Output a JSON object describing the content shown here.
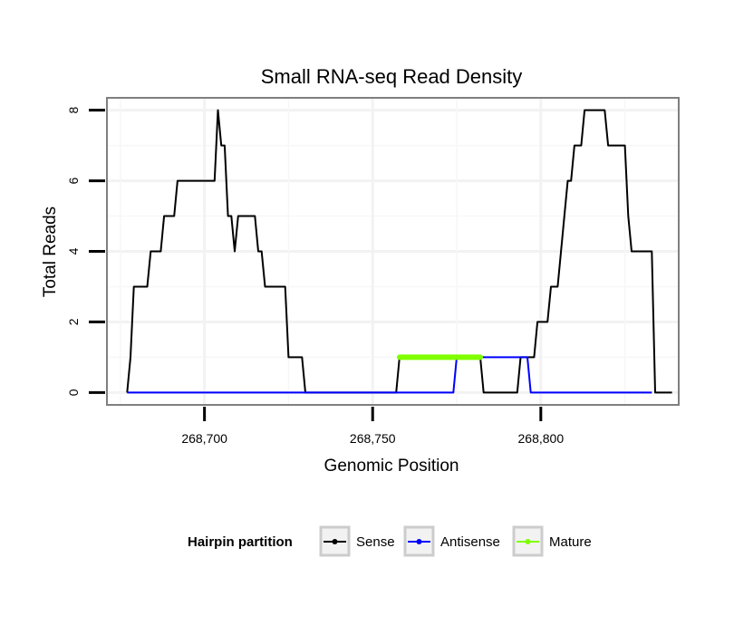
{
  "chart_data": {
    "type": "line",
    "title": "Small RNA-seq Read Density",
    "xlabel": "Genomic Position",
    "ylabel": "Total Reads",
    "xlim": [
      268671,
      268841
    ],
    "ylim": [
      -0.35,
      8.35
    ],
    "x_ticks": [
      268700,
      268750,
      268800
    ],
    "x_tick_labels": [
      "268,700",
      "268,750",
      "268,800"
    ],
    "y_ticks": [
      0,
      2,
      4,
      6,
      8
    ],
    "y_tick_labels": [
      "0",
      "2",
      "4",
      "6",
      "8"
    ],
    "grid": true,
    "legend": {
      "title": "Hairpin partition",
      "position": "bottom",
      "entries": [
        "Sense",
        "Antisense",
        "Mature"
      ]
    },
    "series": [
      {
        "name": "Sense",
        "color": "#000000",
        "x": [
          268677,
          268678,
          268679,
          268680,
          268683,
          268684,
          268687,
          268688,
          268691,
          268692,
          268694,
          268703,
          268704,
          268705,
          268706,
          268707,
          268708,
          268709,
          268710,
          268715,
          268716,
          268717,
          268718,
          268724,
          268725,
          268729,
          268730,
          268757,
          268758,
          268782,
          268783,
          268793,
          268794,
          268797,
          268798,
          268799,
          268802,
          268803,
          268805,
          268806,
          268807,
          268808,
          268809,
          268810,
          268811,
          268812,
          268813,
          268814,
          268815,
          268819,
          268820,
          268825,
          268826,
          268827,
          268833,
          268834,
          268839
        ],
        "values": [
          0,
          1,
          3,
          3,
          3,
          4,
          4,
          5,
          5,
          6,
          6,
          6,
          8,
          7,
          7,
          5,
          5,
          4,
          5,
          5,
          4,
          4,
          3,
          3,
          1,
          1,
          0,
          0,
          1,
          1,
          0,
          0,
          1,
          1,
          1,
          2,
          2,
          3,
          3,
          4,
          5,
          6,
          6,
          7,
          7,
          7,
          8,
          8,
          8,
          8,
          7,
          7,
          5,
          4,
          4,
          0,
          0
        ]
      },
      {
        "name": "Antisense",
        "color": "#0000ff",
        "x": [
          268677,
          268774,
          268775,
          268796,
          268797,
          268833
        ],
        "values": [
          0,
          0,
          1,
          1,
          0,
          0
        ]
      },
      {
        "name": "Mature",
        "color": "#7fff00",
        "x": [
          268758,
          268782
        ],
        "values": [
          1,
          1
        ]
      }
    ]
  }
}
